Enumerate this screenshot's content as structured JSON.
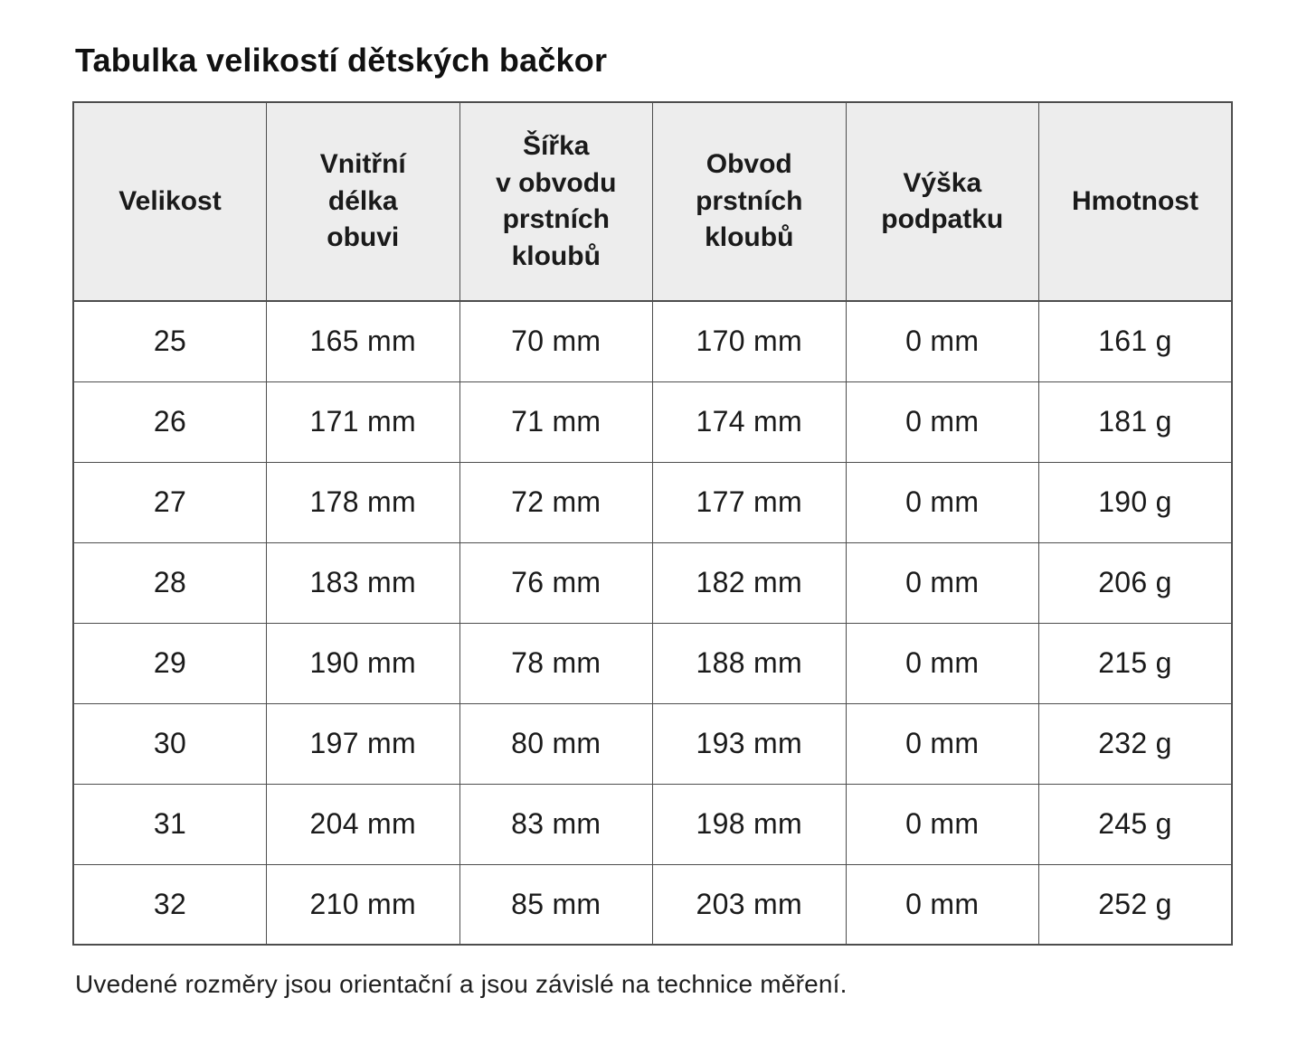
{
  "page": {
    "title": "Tabulka velikostí dětských bačkor",
    "footnote": "Uvedené rozměry jsou orientační a jsou závislé na technice měření."
  },
  "colors": {
    "header_bg": "#ededed",
    "border": "#4d4d4d",
    "text": "#1a1a1a",
    "background": "#ffffff"
  },
  "table": {
    "columns": [
      "Velikost",
      "Vnitřní\ndélka\nobuvi",
      "Šířka\nv obvodu\nprstních\nkloubů",
      "Obvod\nprstních\nkloubů",
      "Výška\npodpatku",
      "Hmotnost"
    ],
    "rows": [
      [
        "25",
        "165 mm",
        "70 mm",
        "170 mm",
        "0 mm",
        "161 g"
      ],
      [
        "26",
        "171 mm",
        "71 mm",
        "174 mm",
        "0 mm",
        "181 g"
      ],
      [
        "27",
        "178 mm",
        "72 mm",
        "177 mm",
        "0 mm",
        "190 g"
      ],
      [
        "28",
        "183 mm",
        "76 mm",
        "182 mm",
        "0 mm",
        "206 g"
      ],
      [
        "29",
        "190 mm",
        "78 mm",
        "188 mm",
        "0 mm",
        "215 g"
      ],
      [
        "30",
        "197 mm",
        "80 mm",
        "193 mm",
        "0 mm",
        "232 g"
      ],
      [
        "31",
        "204 mm",
        "83 mm",
        "198 mm",
        "0 mm",
        "245 g"
      ],
      [
        "32",
        "210 mm",
        "85 mm",
        "203 mm",
        "0 mm",
        "252 g"
      ]
    ]
  }
}
